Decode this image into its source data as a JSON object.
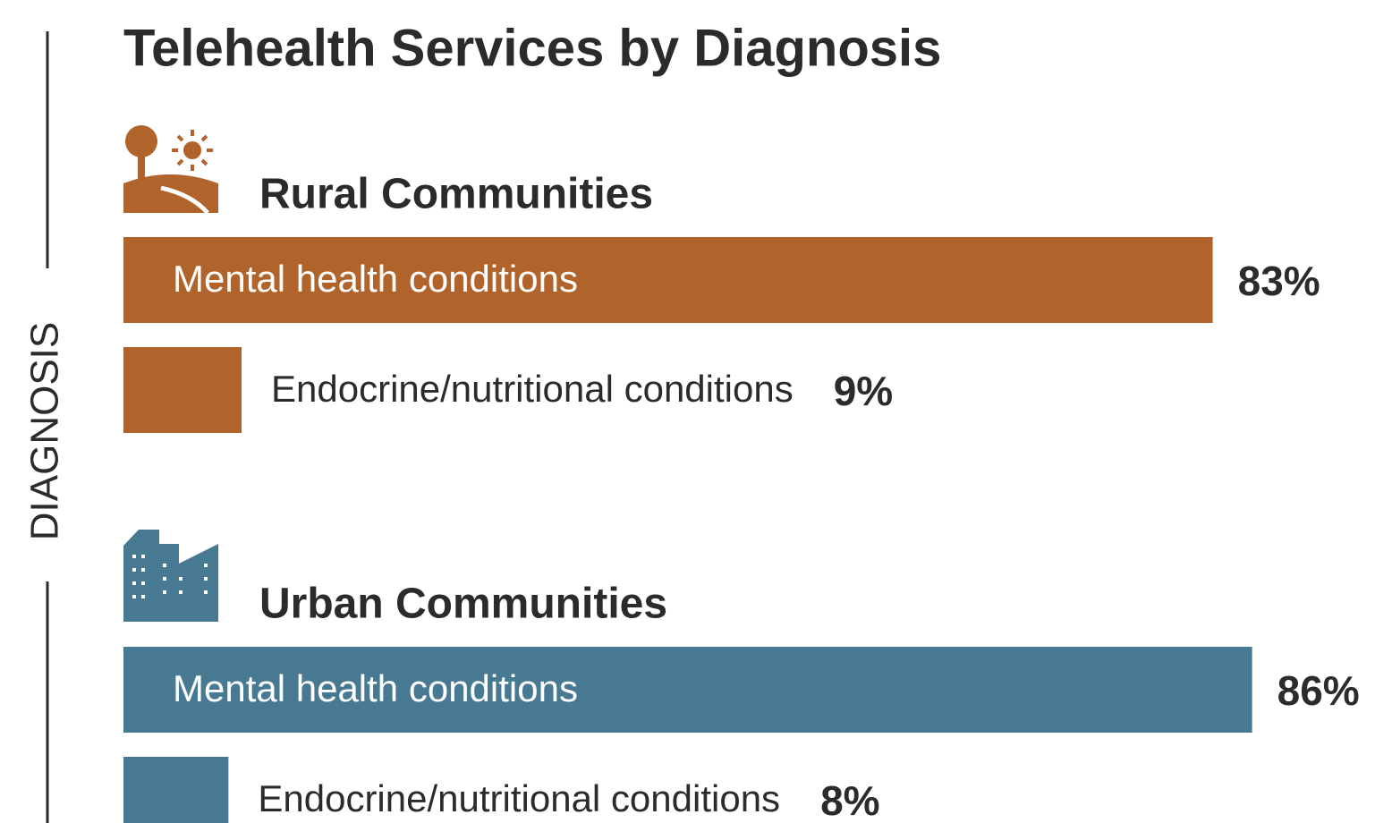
{
  "title": "Telehealth Services by Diagnosis",
  "axis_label": "DIAGNOSIS",
  "chart_data": [
    {
      "type": "bar",
      "title": "Rural Communities",
      "color": "#b0632a",
      "categories": [
        "Mental health conditions",
        "Endocrine/nutritional conditions"
      ],
      "values": [
        83,
        9
      ],
      "value_labels": [
        "83%",
        "9%"
      ],
      "xlim": [
        0,
        100
      ]
    },
    {
      "type": "bar",
      "title": "Urban Communities",
      "color": "#477a92",
      "categories": [
        "Mental health conditions",
        "Endocrine/nutritional conditions"
      ],
      "values": [
        86,
        8
      ],
      "value_labels": [
        "86%",
        "8%"
      ],
      "xlim": [
        0,
        100
      ]
    }
  ]
}
